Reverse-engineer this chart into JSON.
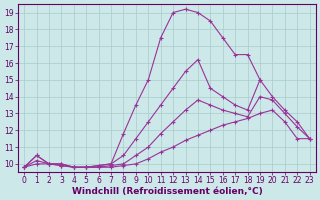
{
  "xlabel": "Windchill (Refroidissement éolien,°C)",
  "background_color": "#cce8e8",
  "grid_color": "#aacccc",
  "line_color": "#993399",
  "xlim": [
    -0.5,
    23.5
  ],
  "ylim": [
    9.5,
    19.5
  ],
  "xticks": [
    0,
    1,
    2,
    3,
    4,
    5,
    6,
    7,
    8,
    9,
    10,
    11,
    12,
    13,
    14,
    15,
    16,
    17,
    18,
    19,
    20,
    21,
    22,
    23
  ],
  "yticks": [
    10,
    11,
    12,
    13,
    14,
    15,
    16,
    17,
    18,
    19
  ],
  "curves": [
    {
      "x": [
        0,
        1,
        2,
        3,
        4,
        5,
        6,
        7,
        8,
        9,
        10,
        11,
        12,
        13,
        14,
        15,
        16,
        17,
        18,
        19,
        20,
        21,
        22,
        23
      ],
      "y": [
        9.8,
        10.5,
        10.0,
        10.0,
        9.8,
        9.8,
        9.9,
        10.0,
        11.8,
        13.5,
        15.0,
        17.5,
        19.0,
        19.2,
        19.0,
        18.5,
        17.5,
        16.5,
        16.5,
        15.0,
        null,
        null,
        null,
        null
      ]
    },
    {
      "x": [
        0,
        1,
        2,
        3,
        4,
        5,
        6,
        7,
        8,
        9,
        10,
        11,
        12,
        13,
        14,
        15,
        16,
        17,
        18,
        19,
        20,
        21,
        22,
        23
      ],
      "y": [
        9.8,
        10.5,
        10.0,
        10.0,
        9.8,
        9.8,
        9.9,
        10.0,
        10.5,
        11.5,
        12.5,
        13.5,
        14.5,
        15.5,
        16.2,
        14.5,
        14.0,
        13.5,
        13.2,
        15.0,
        14.0,
        13.2,
        12.5,
        11.5
      ]
    },
    {
      "x": [
        0,
        1,
        2,
        3,
        4,
        5,
        6,
        7,
        8,
        9,
        10,
        11,
        12,
        13,
        14,
        15,
        16,
        17,
        18,
        19,
        20,
        21,
        22,
        23
      ],
      "y": [
        9.8,
        10.2,
        10.0,
        9.9,
        9.8,
        9.8,
        9.8,
        9.9,
        10.0,
        10.5,
        11.0,
        11.8,
        12.5,
        13.2,
        13.8,
        13.5,
        13.2,
        13.0,
        12.8,
        14.0,
        13.8,
        13.0,
        12.2,
        11.5
      ]
    },
    {
      "x": [
        0,
        1,
        2,
        3,
        4,
        5,
        6,
        7,
        8,
        9,
        10,
        11,
        12,
        13,
        14,
        15,
        16,
        17,
        18,
        19,
        20,
        21,
        22,
        23
      ],
      "y": [
        9.8,
        10.0,
        10.0,
        9.9,
        9.8,
        9.8,
        9.8,
        9.8,
        9.9,
        10.0,
        10.3,
        10.7,
        11.0,
        11.4,
        11.7,
        12.0,
        12.3,
        12.5,
        12.7,
        13.0,
        13.2,
        12.5,
        11.5,
        11.5
      ]
    }
  ],
  "axis_color": "#660066",
  "tick_color": "#660066",
  "tick_fontsize": 5.5,
  "xlabel_fontsize": 6.5,
  "spine_color": "#660066"
}
